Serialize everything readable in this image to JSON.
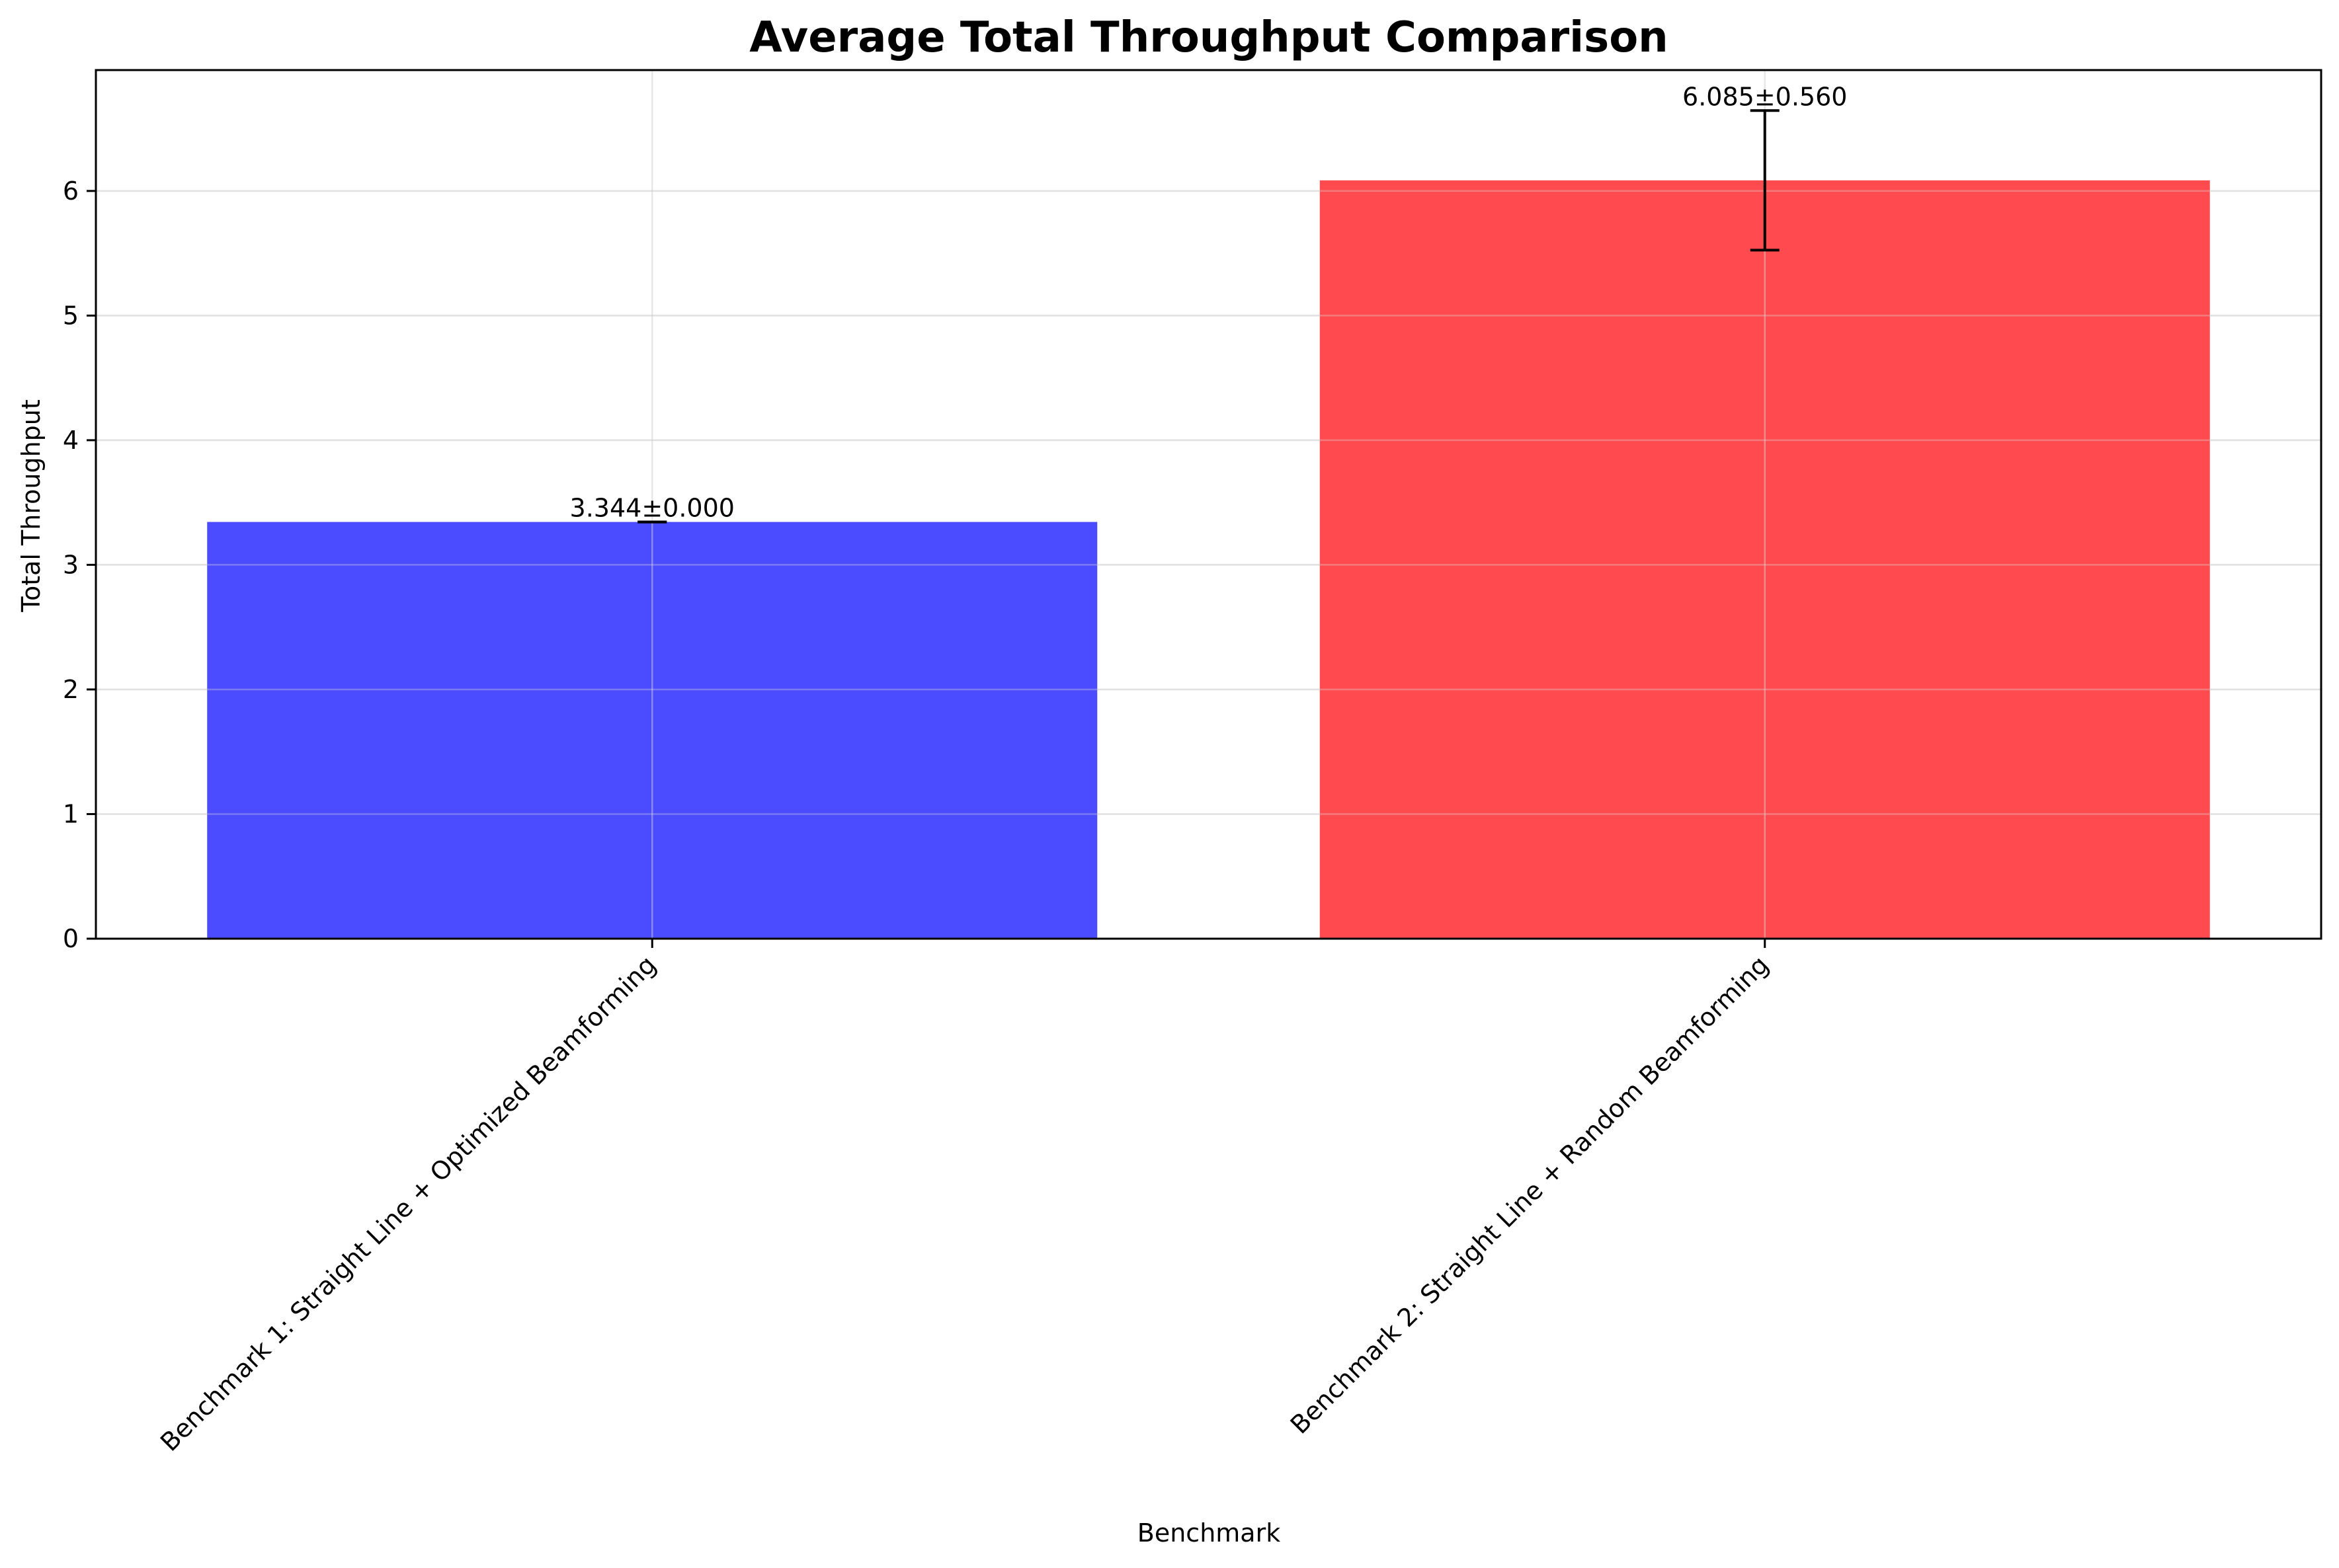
{
  "chart_data": {
    "type": "bar",
    "title": "Average Total Throughput Comparison",
    "xlabel": "Benchmark",
    "ylabel": "Total Throughput",
    "categories": [
      "Benchmark 1: Straight Line + Optimized Beamforming",
      "Benchmark 2: Straight Line + Random Beamforming"
    ],
    "values": [
      3.344,
      6.085
    ],
    "errors": [
      0.0,
      0.56
    ],
    "data_labels": [
      "3.344±0.000",
      "6.085±0.560"
    ],
    "colors": [
      "#4b4bff",
      "#ff4b4f"
    ],
    "ylim": [
      0,
      6.97
    ],
    "yticks": [
      0,
      1,
      2,
      3,
      4,
      5,
      6
    ],
    "ytick_labels": [
      "0",
      "1",
      "2",
      "3",
      "4",
      "5",
      "6"
    ],
    "grid": true,
    "legend": "none"
  }
}
